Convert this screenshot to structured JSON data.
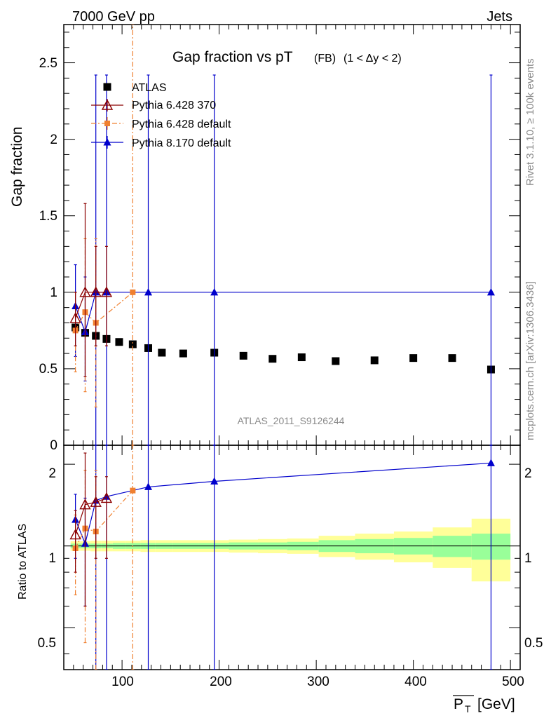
{
  "header": {
    "left": "7000 GeV pp",
    "right": "Jets"
  },
  "title": {
    "main": "Gap fraction vs pT",
    "sub": "(FB)",
    "cut": "(1 < Δy < 2)"
  },
  "analysis_label": "ATLAS_2011_S9126244",
  "side_labels": {
    "rivet": "Rivet 3.1.10, ≥ 100k events",
    "mcplots": "mcplots.cern.ch [arXiv:1306.3436]"
  },
  "axes": {
    "ylabel_main": "Gap fraction",
    "ylabel_ratio": "Ratio to ATLAS",
    "xlabel": "P",
    "xlabel_sub": "T",
    "xlabel_unit": "[GeV]",
    "x_ticks": [
      "100",
      "200",
      "300",
      "400",
      "500"
    ],
    "y_ticks_main": [
      "0",
      "0.5",
      "1",
      "1.5",
      "2",
      "2.5"
    ],
    "y_ticks_ratio": [
      "0.5",
      "1",
      "2"
    ]
  },
  "colors": {
    "atlas": "#000000",
    "py6_370": "#8b0000",
    "py6_def": "#f08030",
    "py8": "#0000cc",
    "band_inner": "#99ff99",
    "band_outer": "#ffff99"
  },
  "chart_data": {
    "type": "scatter",
    "xlim": [
      40,
      510
    ],
    "ylim_main": [
      0,
      2.75
    ],
    "ylim_ratio": [
      0.35,
      2.35
    ],
    "ratio_log_scale": true,
    "legend_position": "top-left",
    "series": [
      {
        "name": "ATLAS",
        "marker": "square",
        "x": [
          52,
          62,
          73,
          84,
          97,
          111,
          127,
          141,
          163,
          195,
          225,
          255,
          285,
          320,
          360,
          400,
          440,
          480
        ],
        "y": [
          0.77,
          0.735,
          0.715,
          0.695,
          0.675,
          0.66,
          0.635,
          0.605,
          0.6,
          0.605,
          0.585,
          0.565,
          0.575,
          0.55,
          0.555,
          0.57,
          0.57,
          0.495
        ],
        "ratio_band_inner": [
          0.02,
          0.02,
          0.02,
          0.02,
          0.025,
          0.025,
          0.025,
          0.025,
          0.025,
          0.025,
          0.03,
          0.03,
          0.035,
          0.05,
          0.06,
          0.07,
          0.09,
          0.11
        ],
        "ratio_band_outer": [
          0.04,
          0.04,
          0.045,
          0.045,
          0.045,
          0.045,
          0.05,
          0.05,
          0.05,
          0.05,
          0.055,
          0.06,
          0.065,
          0.09,
          0.11,
          0.13,
          0.17,
          0.26
        ]
      },
      {
        "name": "Pythia 6.428 370",
        "marker": "open-triangle",
        "x": [
          52,
          62,
          73,
          84
        ],
        "y": [
          0.83,
          1.0,
          1.0,
          1.0
        ],
        "y_low": [
          0.65,
          0.45,
          0.65,
          0.65
        ],
        "y_high": [
          1.0,
          1.58,
          1.3,
          1.3
        ],
        "ratio": [
          1.1,
          1.42,
          1.45,
          1.5
        ],
        "ratio_low": [
          0.8,
          0.6,
          0.9,
          0.9
        ],
        "ratio_high": [
          1.35,
          2.2,
          1.8,
          1.8
        ]
      },
      {
        "name": "Pythia 6.428 default",
        "marker": "square-small",
        "x": [
          52,
          62,
          73,
          111
        ],
        "y": [
          0.75,
          0.87,
          0.8,
          1.0
        ],
        "y_low": [
          0.48,
          0.35,
          0.25,
          0.0
        ],
        "y_high": [
          1.0,
          1.35,
          1.35,
          2.75
        ],
        "ratio": [
          0.98,
          1.16,
          1.13,
          1.6
        ],
        "ratio_low": [
          0.66,
          0.44,
          0.35,
          0.35
        ],
        "ratio_high": [
          1.3,
          1.9,
          1.9,
          2.35
        ]
      },
      {
        "name": "Pythia 8.170 default",
        "marker": "triangle",
        "x": [
          52,
          62,
          73,
          84,
          127,
          195,
          480
        ],
        "y": [
          0.91,
          0.74,
          1.0,
          1.0,
          1.0,
          1.0,
          1.0
        ],
        "y_low": [
          0.58,
          0.42,
          0.0,
          0.0,
          0.0,
          0.0,
          0.0
        ],
        "y_high": [
          1.18,
          1.1,
          2.42,
          2.42,
          2.42,
          2.42,
          2.42
        ],
        "ratio": [
          1.25,
          1.02,
          1.47,
          1.52,
          1.65,
          1.73,
          2.02
        ],
        "ratio_low": [
          0.9,
          0.6,
          0.35,
          0.35,
          0.35,
          0.35,
          0.35
        ],
        "ratio_high": [
          1.55,
          1.5,
          2.35,
          2.35,
          2.35,
          2.35,
          2.35
        ]
      }
    ]
  }
}
